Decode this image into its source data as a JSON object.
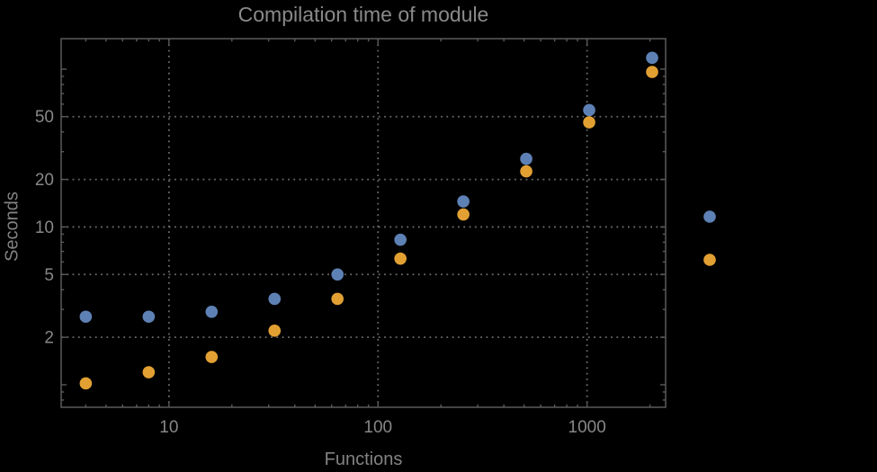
{
  "colors": {
    "background": "#000000",
    "frame": "#5a5a5a",
    "grid": "#6b6b6b",
    "text": "#878787",
    "series_blue": "#5E81B5",
    "series_orange": "#E2A033"
  },
  "chart_data": {
    "type": "scatter",
    "title": "Compilation time of module",
    "xlabel": "Functions",
    "ylabel": "Seconds",
    "x_scale": "log",
    "y_scale": "log",
    "grid": "dotted",
    "x": [
      4,
      8,
      16,
      32,
      64,
      128,
      256,
      512,
      1024,
      2048
    ],
    "series": [
      {
        "name": "series-blue",
        "color": "#5E81B5",
        "values": [
          2.7,
          2.7,
          2.9,
          3.5,
          5.0,
          8.3,
          14.5,
          27,
          55,
          118
        ]
      },
      {
        "name": "series-orange",
        "color": "#E2A033",
        "values": [
          1.02,
          1.2,
          1.5,
          2.2,
          3.5,
          6.3,
          12,
          22.5,
          46,
          96
        ]
      }
    ],
    "xlim": [
      3.05,
      2376
    ],
    "ylim": [
      0.72,
      156
    ],
    "x_ticks_labeled": [
      10,
      100,
      1000
    ],
    "y_ticks_labeled": [
      2,
      5,
      10,
      20,
      50
    ],
    "legend": {
      "position": "right-outside",
      "markers": [
        {
          "name": "legend-marker-blue",
          "color": "#5E81B5"
        },
        {
          "name": "legend-marker-orange",
          "color": "#E2A033"
        }
      ]
    }
  }
}
